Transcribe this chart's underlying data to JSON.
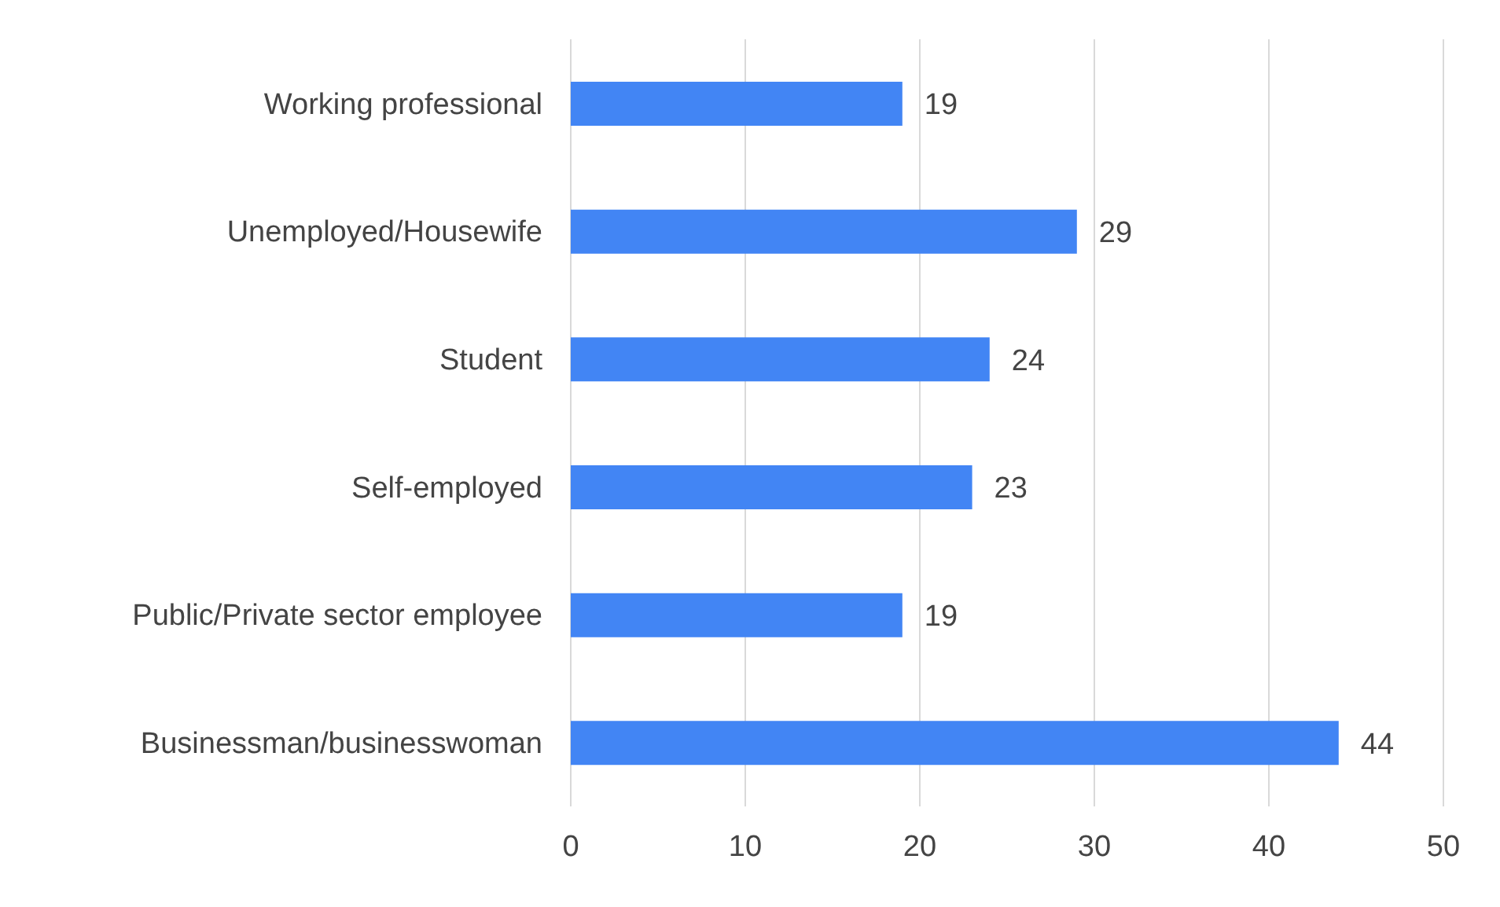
{
  "chart_data": {
    "type": "bar",
    "orientation": "horizontal",
    "categories": [
      "Working professional",
      "Unemployed/Housewife",
      "Student",
      "Self-employed",
      "Public/Private sector employee",
      "Businessman/businesswoman"
    ],
    "values": [
      19,
      29,
      24,
      23,
      19,
      44
    ],
    "color": "#4285f4",
    "xlim": [
      0,
      50
    ],
    "xticks": [
      0,
      10,
      20,
      30,
      40,
      50
    ],
    "grid": "x",
    "data_labels": true,
    "legend": false
  }
}
